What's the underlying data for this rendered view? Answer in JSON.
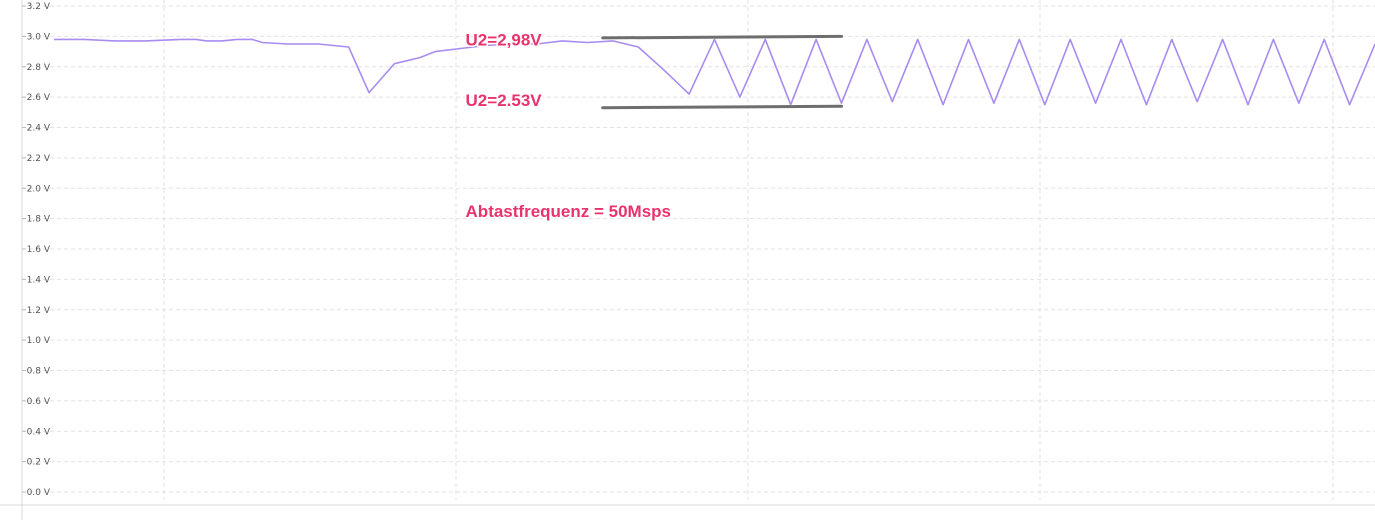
{
  "chart_data": {
    "type": "line",
    "title": "",
    "xlabel": "",
    "ylabel": "",
    "ylim": [
      0,
      3.2
    ],
    "y_ticks": [
      "0.0 V",
      "0.2 V",
      "0.4 V",
      "0.6 V",
      "0.8 V",
      "1.0 V",
      "1.2 V",
      "1.4 V",
      "1.6 V",
      "1.8 V",
      "2.0 V",
      "2.2 V",
      "2.4 V",
      "2.6 V",
      "2.8 V",
      "3.0 V",
      "3.2 V"
    ],
    "grid": true,
    "series": [
      {
        "color": "#a98cf0",
        "x": [
          0,
          6,
          12,
          18,
          25,
          28,
          30,
          33,
          36,
          39,
          41,
          46,
          52,
          58,
          62,
          67,
          72,
          75,
          80,
          85,
          90,
          95,
          100,
          105,
          110,
          115,
          120,
          125,
          130,
          135,
          140,
          145,
          150,
          155,
          160,
          165,
          170,
          175,
          180,
          185,
          190,
          195,
          200,
          205,
          210,
          215,
          220,
          225,
          230,
          235,
          240,
          245,
          250,
          255,
          260
        ],
        "y": [
          2.98,
          2.98,
          2.97,
          2.97,
          2.98,
          2.98,
          2.97,
          2.97,
          2.98,
          2.98,
          2.96,
          2.95,
          2.95,
          2.93,
          2.63,
          2.82,
          2.86,
          2.9,
          2.92,
          2.94,
          2.95,
          2.95,
          2.97,
          2.96,
          2.97,
          2.93,
          2.78,
          2.62,
          2.98,
          2.6,
          2.98,
          2.55,
          2.98,
          2.56,
          2.98,
          2.57,
          2.98,
          2.55,
          2.98,
          2.56,
          2.98,
          2.55,
          2.98,
          2.56,
          2.98,
          2.55,
          2.98,
          2.57,
          2.98,
          2.55,
          2.98,
          2.56,
          2.98,
          2.55,
          2.95
        ]
      }
    ],
    "annotations": [
      {
        "text": "U2=2,98V",
        "x": 81,
        "y": 2.98
      },
      {
        "text": "U2=2.53V",
        "x": 81,
        "y": 2.58
      },
      {
        "text": "Abtastfrequenz = 50Msps",
        "x": 81,
        "y": 1.85
      }
    ],
    "reference_lines": [
      {
        "x1": 108,
        "x2": 155,
        "y1": 2.99,
        "y2": 3.0,
        "color": "#6e6e6e"
      },
      {
        "x1": 108,
        "x2": 155,
        "y1": 2.53,
        "y2": 2.54,
        "color": "#6e6e6e"
      }
    ]
  }
}
